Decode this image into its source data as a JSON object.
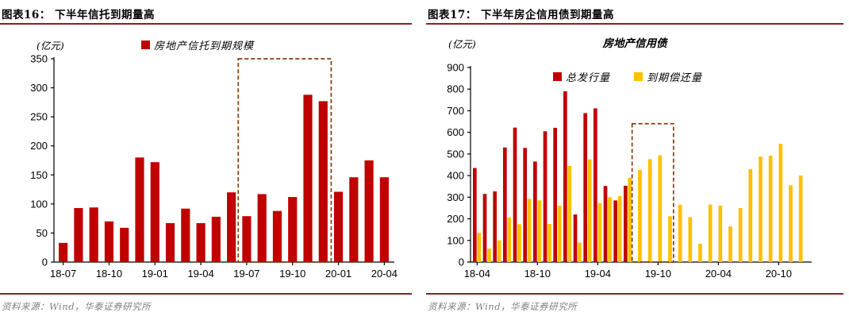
{
  "colors": {
    "bar_red": "#C00000",
    "bar_yellow": "#FFC000",
    "highlight_box": "#843C0C",
    "rule_line": "#8B2222",
    "source_text": "#808080",
    "axis": "#000000"
  },
  "figure16": {
    "title": "图表16：  下半年信托到期量高",
    "unit_label": "(亿元)",
    "legend_label": "房地产信托到期规模",
    "source": "资料来源：Wind，华泰证券研究所"
  },
  "figure17": {
    "title": "图表17：  下半年房企信用债到期量高",
    "unit_label": "(亿元)",
    "chart_title": "房地产信用债",
    "legend_issuance": "总发行量",
    "legend_repayment": "到期偿还量",
    "source": "资料来源：Wind，华泰证券研究所"
  },
  "chart_data": [
    {
      "type": "bar",
      "title": "下半年信托到期量高",
      "chart_title": "",
      "ylabel": "(亿元)",
      "legend": [
        "房地产信托到期规模"
      ],
      "legend_position": "top",
      "grid": false,
      "ylim": [
        0,
        350
      ],
      "ytick_step": 50,
      "bar_color": "#C00000",
      "categories": [
        "18-07",
        "18-08",
        "18-09",
        "18-10",
        "18-11",
        "18-12",
        "19-01",
        "19-02",
        "19-03",
        "19-04",
        "19-05",
        "19-06",
        "19-07",
        "19-08",
        "19-09",
        "19-10",
        "19-11",
        "19-12",
        "20-01",
        "20-02",
        "20-03",
        "20-04"
      ],
      "values": [
        33,
        93,
        94,
        70,
        59,
        180,
        172,
        67,
        92,
        67,
        78,
        120,
        79,
        117,
        88,
        112,
        288,
        277,
        121,
        146,
        175,
        146
      ],
      "xtick_labels": [
        "18-07",
        "18-10",
        "19-01",
        "19-04",
        "19-07",
        "19-10",
        "20-01",
        "20-04"
      ],
      "highlight_box": {
        "from": "19-07",
        "to": "19-12",
        "top": 350,
        "color": "#843C0C"
      }
    },
    {
      "type": "bar",
      "title": "下半年房企信用债到期量高",
      "chart_title": "房地产信用债",
      "ylabel": "(亿元)",
      "legend_position": "top",
      "grid": false,
      "ylim": [
        0,
        900
      ],
      "ytick_step": 100,
      "categories": [
        "18-04",
        "18-05",
        "18-06",
        "18-07",
        "18-08",
        "18-09",
        "18-10",
        "18-11",
        "18-12",
        "19-01",
        "19-02",
        "19-03",
        "19-04",
        "19-05",
        "19-06",
        "19-07",
        "19-08",
        "19-09",
        "19-10",
        "19-11",
        "19-12",
        "20-01",
        "20-02",
        "20-03",
        "20-04",
        "20-05",
        "20-06",
        "20-07",
        "20-08",
        "20-09",
        "20-10",
        "20-11",
        "20-12"
      ],
      "series": [
        {
          "name": "总发行量",
          "color": "#C00000",
          "values": [
            435,
            315,
            327,
            530,
            622,
            528,
            465,
            605,
            621,
            790,
            220,
            689,
            711,
            352,
            285,
            353,
            0,
            0,
            0,
            0,
            0,
            0,
            0,
            0,
            0,
            0,
            0,
            0,
            0,
            0,
            0,
            0,
            0
          ]
        },
        {
          "name": "到期偿还量",
          "color": "#FFC000",
          "values": [
            135,
            62,
            100,
            206,
            175,
            292,
            285,
            176,
            261,
            445,
            90,
            475,
            273,
            300,
            305,
            390,
            427,
            476,
            494,
            212,
            265,
            208,
            85,
            266,
            261,
            165,
            250,
            430,
            488,
            492,
            547,
            355,
            400
          ]
        }
      ],
      "xtick_labels": [
        "18-04",
        "18-10",
        "19-04",
        "19-10",
        "20-04",
        "20-10"
      ],
      "highlight_box": {
        "from": "19-08",
        "to": "19-11",
        "top": 640,
        "color": "#843C0C"
      }
    }
  ]
}
